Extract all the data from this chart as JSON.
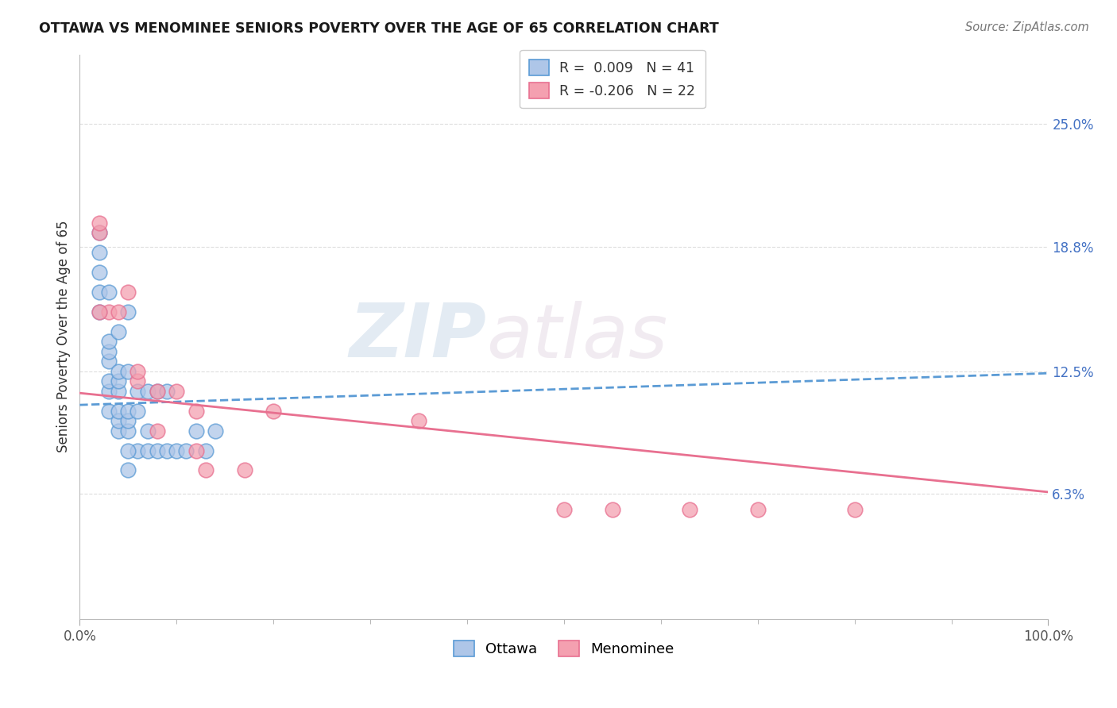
{
  "title": "OTTAWA VS MENOMINEE SENIORS POVERTY OVER THE AGE OF 65 CORRELATION CHART",
  "source": "Source: ZipAtlas.com",
  "ylabel": "Seniors Poverty Over the Age of 65",
  "xlim": [
    0,
    1.0
  ],
  "ylim": [
    0.0,
    0.285
  ],
  "yticks": [
    0.063,
    0.125,
    0.188,
    0.25
  ],
  "ytick_labels": [
    "6.3%",
    "12.5%",
    "18.8%",
    "25.0%"
  ],
  "xticks": [
    0.0,
    1.0
  ],
  "xtick_labels": [
    "0.0%",
    "100.0%"
  ],
  "ottawa_R": 0.009,
  "ottawa_N": 41,
  "menominee_R": -0.206,
  "menominee_N": 22,
  "ottawa_color": "#aec6e8",
  "menominee_color": "#f4a0b0",
  "trend_ottawa_color": "#5b9bd5",
  "trend_menominee_color": "#e87090",
  "watermark_zip": "ZIP",
  "watermark_atlas": "atlas",
  "background_color": "#ffffff",
  "grid_color": "#dddddd",
  "ottawa_x": [
    0.02,
    0.02,
    0.02,
    0.03,
    0.03,
    0.03,
    0.03,
    0.03,
    0.03,
    0.04,
    0.04,
    0.04,
    0.04,
    0.04,
    0.04,
    0.05,
    0.05,
    0.05,
    0.05,
    0.05,
    0.06,
    0.06,
    0.06,
    0.07,
    0.07,
    0.07,
    0.08,
    0.08,
    0.09,
    0.09,
    0.1,
    0.11,
    0.12,
    0.13,
    0.14,
    0.02,
    0.02,
    0.03,
    0.04,
    0.05,
    0.05
  ],
  "ottawa_y": [
    0.155,
    0.165,
    0.175,
    0.105,
    0.115,
    0.12,
    0.13,
    0.135,
    0.14,
    0.095,
    0.1,
    0.105,
    0.115,
    0.12,
    0.125,
    0.095,
    0.1,
    0.105,
    0.125,
    0.155,
    0.085,
    0.105,
    0.115,
    0.085,
    0.095,
    0.115,
    0.085,
    0.115,
    0.085,
    0.115,
    0.085,
    0.085,
    0.095,
    0.085,
    0.095,
    0.185,
    0.195,
    0.165,
    0.145,
    0.075,
    0.085
  ],
  "menominee_x": [
    0.02,
    0.02,
    0.03,
    0.04,
    0.05,
    0.06,
    0.06,
    0.08,
    0.1,
    0.12,
    0.13,
    0.17,
    0.2,
    0.35,
    0.5,
    0.55,
    0.63,
    0.7,
    0.8,
    0.02,
    0.08,
    0.12
  ],
  "menominee_y": [
    0.195,
    0.2,
    0.155,
    0.155,
    0.165,
    0.12,
    0.125,
    0.115,
    0.115,
    0.105,
    0.075,
    0.075,
    0.105,
    0.1,
    0.055,
    0.055,
    0.055,
    0.055,
    0.055,
    0.155,
    0.095,
    0.085
  ],
  "trend_ottawa_intercept": 0.108,
  "trend_ottawa_slope": 0.016,
  "trend_menominee_intercept": 0.114,
  "trend_menominee_slope": -0.05
}
